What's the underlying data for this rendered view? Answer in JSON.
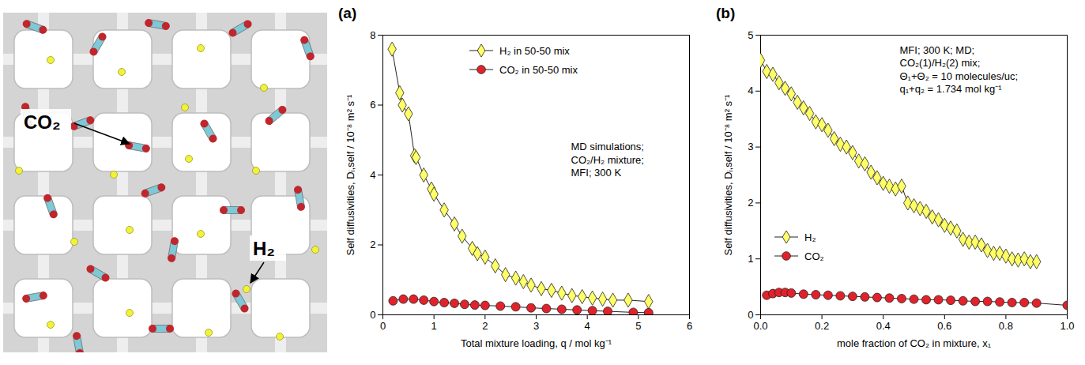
{
  "illustration": {
    "labels": [
      "CO₂",
      "H₂"
    ]
  },
  "chart_data": [
    {
      "type": "line",
      "title": "(a)",
      "xlabel": "Total mixture loading, q / mol kg⁻¹",
      "ylabel": "Self diffusivities, Dᵢ,self / 10⁻⁸ m² s⁻¹",
      "annotation": [
        "MD simulations;",
        "CO₂/H₂ mixture;",
        "MFI; 300 K"
      ],
      "xlim": [
        0,
        6
      ],
      "xticks": [
        0,
        1,
        2,
        3,
        4,
        5,
        6
      ],
      "ylim": [
        0,
        8
      ],
      "yticks": [
        0,
        2,
        4,
        6,
        8
      ],
      "legend": "top",
      "series": [
        {
          "name": "H₂ in 50-50 mix",
          "color": "#ffff66",
          "marker": "diamond",
          "x": [
            0.18,
            0.33,
            0.38,
            0.5,
            0.62,
            0.65,
            0.8,
            0.95,
            1.0,
            1.2,
            1.4,
            1.55,
            1.75,
            1.85,
            2.0,
            2.2,
            2.4,
            2.6,
            2.75,
            2.9,
            3.1,
            3.3,
            3.5,
            3.7,
            3.9,
            4.1,
            4.3,
            4.5,
            4.8,
            5.2
          ],
          "values": [
            7.6,
            6.35,
            6.0,
            5.75,
            4.55,
            4.5,
            4.0,
            3.6,
            3.45,
            3.0,
            2.6,
            2.25,
            1.9,
            1.75,
            1.65,
            1.4,
            1.15,
            1.05,
            0.95,
            0.85,
            0.75,
            0.7,
            0.62,
            0.55,
            0.52,
            0.48,
            0.45,
            0.42,
            0.42,
            0.38
          ]
        },
        {
          "name": "CO₂ in 50-50 mix",
          "color": "#e2222a",
          "marker": "circle",
          "x": [
            0.2,
            0.4,
            0.6,
            0.8,
            1.0,
            1.2,
            1.4,
            1.6,
            1.8,
            2.0,
            2.3,
            2.6,
            2.9,
            3.2,
            3.5,
            3.8,
            4.1,
            4.4,
            4.9,
            5.2
          ],
          "values": [
            0.4,
            0.45,
            0.45,
            0.42,
            0.38,
            0.35,
            0.33,
            0.3,
            0.28,
            0.27,
            0.25,
            0.23,
            0.2,
            0.18,
            0.16,
            0.14,
            0.12,
            0.1,
            0.07,
            0.06
          ]
        }
      ]
    },
    {
      "type": "line",
      "title": "(b)",
      "xlabel": "mole fraction of CO₂ in mixture, x₁",
      "ylabel": "Self diffusivities, Dᵢ,self / 10⁻⁸ m² s⁻¹",
      "annotation": [
        "MFI; 300 K; MD;",
        "CO₂(1)/H₂(2) mix;",
        "Θ₁+Θ₂ = 10 molecules/uc;",
        "q₁+q₂ = 1.734 mol kg⁻¹"
      ],
      "xlim": [
        0,
        1
      ],
      "xticks": [
        {
          "value": 0,
          "label": "0.0"
        },
        0.2,
        0.4,
        0.6,
        0.8,
        {
          "value": 1,
          "label": "1.0"
        }
      ],
      "ylim": [
        0,
        5
      ],
      "yticks": [
        0,
        1,
        2,
        3,
        4,
        5
      ],
      "legend": "bottom-left",
      "series": [
        {
          "name": "H₂",
          "color": "#ffff66",
          "marker": "diamond",
          "x": [
            0,
            0.02,
            0.04,
            0.06,
            0.08,
            0.1,
            0.12,
            0.14,
            0.16,
            0.18,
            0.2,
            0.22,
            0.24,
            0.26,
            0.28,
            0.3,
            0.32,
            0.34,
            0.36,
            0.38,
            0.4,
            0.42,
            0.44,
            0.46,
            0.48,
            0.5,
            0.52,
            0.54,
            0.56,
            0.58,
            0.6,
            0.62,
            0.64,
            0.66,
            0.68,
            0.7,
            0.72,
            0.74,
            0.76,
            0.78,
            0.8,
            0.82,
            0.84,
            0.86,
            0.88,
            0.9
          ],
          "values": [
            4.55,
            4.35,
            4.3,
            4.15,
            4.05,
            3.95,
            3.8,
            3.7,
            3.6,
            3.45,
            3.4,
            3.3,
            3.15,
            3.05,
            3.0,
            2.9,
            2.75,
            2.7,
            2.55,
            2.45,
            2.35,
            2.3,
            2.25,
            2.3,
            2.0,
            1.95,
            1.9,
            1.85,
            1.75,
            1.7,
            1.6,
            1.55,
            1.5,
            1.35,
            1.3,
            1.3,
            1.25,
            1.15,
            1.1,
            1.1,
            1.05,
            1.0,
            0.98,
            1.0,
            0.95,
            0.95
          ]
        },
        {
          "name": "CO₂",
          "color": "#e2222a",
          "marker": "circle",
          "x": [
            0.02,
            0.04,
            0.06,
            0.08,
            0.1,
            0.14,
            0.18,
            0.22,
            0.26,
            0.3,
            0.34,
            0.38,
            0.42,
            0.46,
            0.5,
            0.54,
            0.58,
            0.62,
            0.66,
            0.7,
            0.74,
            0.78,
            0.82,
            0.86,
            0.9,
            1.0
          ],
          "values": [
            0.35,
            0.38,
            0.4,
            0.4,
            0.39,
            0.37,
            0.36,
            0.35,
            0.34,
            0.33,
            0.32,
            0.31,
            0.3,
            0.29,
            0.28,
            0.27,
            0.27,
            0.26,
            0.25,
            0.24,
            0.24,
            0.23,
            0.22,
            0.22,
            0.21,
            0.17
          ]
        }
      ]
    }
  ]
}
